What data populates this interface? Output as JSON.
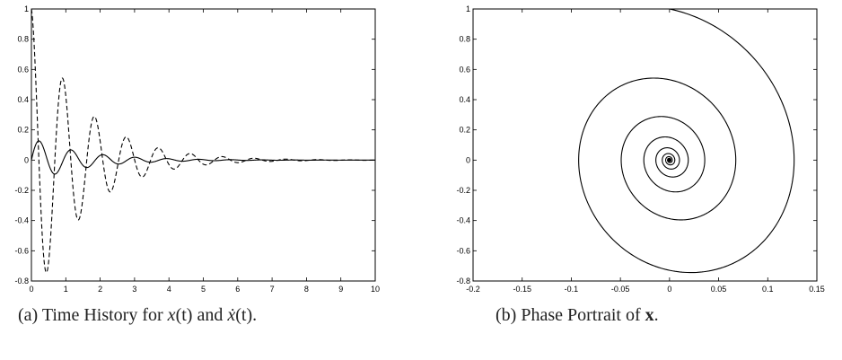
{
  "chart_data": [
    {
      "type": "line",
      "xlim": [
        0,
        10
      ],
      "ylim": [
        -0.8,
        1
      ],
      "x_ticks": [
        "0",
        "1",
        "2",
        "3",
        "4",
        "5",
        "6",
        "7",
        "8",
        "9",
        "10"
      ],
      "y_ticks": [
        "1",
        "0.8",
        "0.6",
        "0.4",
        "0.2",
        "0",
        "-0.2",
        "-0.4",
        "-0.6",
        "-0.8"
      ],
      "grid": false,
      "series": [
        {
          "style": "solid",
          "color": "#000000",
          "model": {
            "x0": 0,
            "v0": 1,
            "omega": 6.8,
            "zeta": 0.1
          },
          "x": [
            0,
            0.23,
            0.46,
            0.69,
            0.92,
            1.16,
            1.39,
            1.62,
            1.85,
            2.08,
            2.31,
            2.54,
            2.77,
            3.0,
            3.23,
            3.47,
            3.7,
            3.93,
            4.16,
            4.39,
            5.0,
            6.0,
            10.0
          ],
          "y": [
            0,
            0.13,
            0.0,
            -0.1,
            0.0,
            0.07,
            0.0,
            -0.06,
            0.0,
            0.04,
            0.0,
            -0.03,
            0.0,
            0.02,
            0.0,
            -0.015,
            0.0,
            0.01,
            0.0,
            -0.008,
            0.0,
            0.0,
            0.0
          ]
        },
        {
          "style": "dashed",
          "color": "#000000",
          "x": [
            0,
            0.23,
            0.45,
            0.69,
            0.92,
            1.16,
            1.38,
            1.62,
            1.85,
            2.08,
            2.31,
            2.54,
            2.77,
            3.0,
            3.23,
            3.47,
            3.7,
            3.93,
            4.16,
            4.39,
            5.0,
            6.0,
            10.0
          ],
          "y": [
            1.0,
            0.0,
            -0.75,
            0.0,
            0.54,
            0.0,
            -0.39,
            0.0,
            0.28,
            0.0,
            -0.21,
            0.0,
            0.15,
            0.0,
            -0.11,
            0.0,
            0.08,
            0.0,
            -0.06,
            0.0,
            0.03,
            0.0,
            0.0
          ]
        }
      ]
    },
    {
      "type": "line",
      "xlim": [
        -0.2,
        0.15
      ],
      "ylim": [
        -0.8,
        1
      ],
      "x_ticks": [
        "-0.2",
        "-0.15",
        "-0.1",
        "-0.05",
        "0",
        "0.05",
        "0.1",
        "0.15"
      ],
      "y_ticks": [
        "1",
        "0.8",
        "0.6",
        "0.4",
        "0.2",
        "0",
        "-0.2",
        "-0.4",
        "-0.6",
        "-0.8"
      ],
      "grid": false,
      "series": [
        {
          "style": "solid",
          "color": "#000000",
          "description_points": {
            "x": [
              0,
              0.14,
              0.025,
              -0.1,
              0,
              0.073,
              0.013,
              -0.038,
              0,
              0.025,
              0
            ],
            "y": [
              1,
              0.2,
              -0.73,
              0.0,
              0.54,
              0.0,
              -0.38,
              0.0,
              0.28,
              0.0,
              0.0
            ]
          }
        }
      ]
    }
  ],
  "captions": {
    "a_prefix": "(a) Time History for ",
    "a_var1": "x",
    "a_arg1": "(t)",
    "a_and": " and ",
    "a_var2": "ẋ",
    "a_arg2": "(t)",
    "a_end": ".",
    "b_prefix": "(b) Phase Portrait of ",
    "b_bold": "x",
    "b_end": "."
  }
}
